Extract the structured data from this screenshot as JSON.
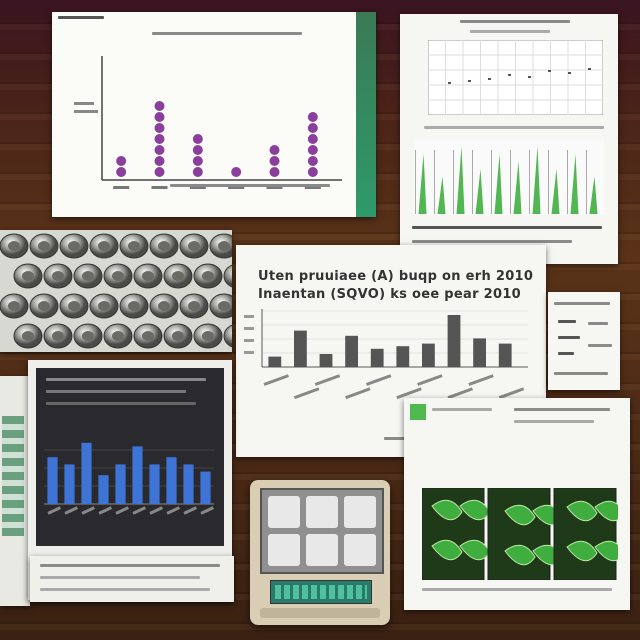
{
  "scene": {
    "wood_color": "#4b2a16",
    "paper_color": "#f6f6f2",
    "accent_purple": "#8a3f9c",
    "accent_green": "#3fae3f",
    "accent_blue": "#3d74d6",
    "bar_gray": "#555555"
  },
  "purple_dot_chart": {
    "chart_data": {
      "type": "scatter",
      "categories": [
        "",
        "",
        "",
        "",
        "",
        ""
      ],
      "values": [
        2,
        7,
        4,
        1,
        3,
        6
      ]
    }
  },
  "center_bar_chart": {
    "headline_line1": "Uten pruuiaee (A) buqp on erh 2010",
    "headline_line2": "Inaentan (SQVO) ks oee pear 2010",
    "chart_data": {
      "type": "bar",
      "categories": [
        "",
        "",
        "",
        "",
        "",
        "",
        "",
        "",
        "",
        ""
      ],
      "values": [
        2,
        7,
        2.5,
        6,
        3.5,
        4,
        4.5,
        10,
        5.5,
        4.5
      ]
    }
  },
  "blue_bar_chart": {
    "chart_data": {
      "type": "bar",
      "values": [
        6.5,
        5.5,
        8.5,
        4,
        5.5,
        8,
        5.5,
        6.5,
        5.5,
        4.5
      ]
    }
  },
  "green_spike_chart": {
    "chart_data": {
      "type": "line",
      "values": [
        8,
        5,
        9,
        6,
        8,
        7,
        9,
        6,
        8,
        5
      ]
    }
  },
  "device": {
    "kind": "tablet-viewer"
  }
}
